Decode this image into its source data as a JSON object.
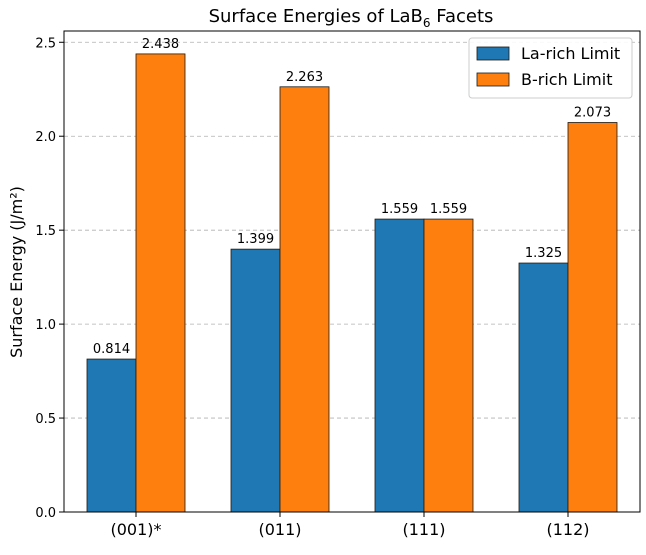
{
  "chart_data": {
    "type": "bar",
    "title_main": "Surface Energies of LaB",
    "title_sub": "6",
    "title_tail": " Facets",
    "ylabel": "Surface Energy (J/m²)",
    "xlabel": "",
    "categories": [
      "(001)*",
      "(011)",
      "(111)",
      "(112)"
    ],
    "series": [
      {
        "name": "La-rich Limit",
        "color": "#1f77b4",
        "values": [
          0.814,
          1.399,
          1.559,
          1.325
        ]
      },
      {
        "name": "B-rich Limit",
        "color": "#ff7f0e",
        "values": [
          2.438,
          2.263,
          1.559,
          2.073
        ]
      }
    ],
    "ylim": [
      0,
      2.56
    ],
    "yticks": [
      "0.0",
      "0.5",
      "1.0",
      "1.5",
      "2.0",
      "2.5"
    ],
    "grid": "y-dashed",
    "legend_position": "top-right"
  }
}
